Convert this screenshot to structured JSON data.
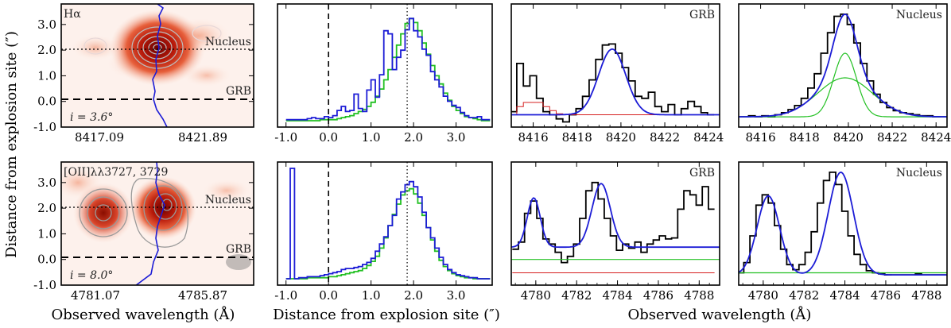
{
  "chart_data": {
    "type": "line",
    "shared": {
      "ylabel": "Distance from explosion site (″)",
      "xlabel_spatial": "Distance from explosion site (″)",
      "xlabel_wave": "Observed wavelength (Å)",
      "xlabel_image": "Observed wavelength (Å)",
      "ylim": [
        -1.0,
        3.8
      ],
      "yticks": [
        "-1.0",
        "0.0",
        "1.0",
        "2.0",
        "3.0"
      ],
      "ytick_values": [
        -1,
        0,
        1,
        2,
        3
      ],
      "spatial_xticks": [
        "-1.0",
        "0.0",
        "1.0",
        "2.0",
        "3.0"
      ],
      "spatial_xtick_values": [
        -1,
        0,
        1,
        2,
        3
      ],
      "nucleus_label": "Nucleus",
      "grb_label": "GRB",
      "nucleus_offset": 1.95,
      "grb_offset": 0.0,
      "peak_offset": 1.85
    },
    "rows": [
      {
        "line": "Hα",
        "image_title": "Hα",
        "inclination_label": "i = 3.6°",
        "image_xticks": [
          "8417.09",
          "8421.89"
        ],
        "wave_xlim": [
          8415,
          8424.5
        ],
        "wave_xticks": [
          8416,
          8418,
          8420,
          8422,
          8424
        ],
        "wave_ylim": [
          -0.1,
          1.1
        ],
        "profile_offsets": [
          -0.95,
          -0.85,
          -0.75,
          -0.65,
          -0.55,
          -0.45,
          -0.35,
          -0.25,
          -0.15,
          -0.05,
          0.05,
          0.15,
          0.25,
          0.35,
          0.45,
          0.55,
          0.65,
          0.75,
          0.85,
          0.95,
          1.05,
          1.15,
          1.25,
          1.35,
          1.45,
          1.55,
          1.65,
          1.75,
          1.85,
          1.95,
          2.05,
          2.15,
          2.25,
          2.35,
          2.45,
          2.55,
          2.65,
          2.75,
          2.85,
          2.95,
          3.05,
          3.15,
          3.25,
          3.35,
          3.45,
          3.55,
          3.65,
          3.75
        ],
        "profile_blue": [
          0.01,
          0.01,
          0.01,
          0.01,
          0.01,
          0.02,
          0.03,
          0.02,
          0.02,
          0.04,
          0.03,
          0.05,
          0.1,
          0.14,
          0.09,
          0.1,
          0.26,
          0.12,
          0.09,
          0.3,
          0.4,
          0.23,
          0.45,
          0.88,
          0.85,
          0.5,
          0.62,
          0.69,
          0.89,
          1.0,
          0.88,
          0.82,
          0.7,
          0.64,
          0.48,
          0.4,
          0.33,
          0.24,
          0.19,
          0.15,
          0.13,
          0.08,
          0.05,
          0.03,
          0.03,
          0.04,
          0.01,
          0.01
        ],
        "profile_green": [
          0.0,
          0.0,
          0.0,
          0.0,
          0.0,
          0.0,
          0.0,
          0.0,
          0.01,
          0.01,
          0.01,
          0.01,
          0.02,
          0.03,
          0.04,
          0.05,
          0.07,
          0.09,
          0.11,
          0.14,
          0.18,
          0.24,
          0.31,
          0.4,
          0.5,
          0.62,
          0.74,
          0.85,
          0.95,
          1.0,
          0.96,
          0.88,
          0.76,
          0.65,
          0.54,
          0.44,
          0.36,
          0.27,
          0.2,
          0.14,
          0.1,
          0.07,
          0.04,
          0.03,
          0.02,
          0.01,
          0.0,
          0.0
        ],
        "grb_panel": {
          "label": "GRB",
          "wave": [
            8415.1,
            8415.4,
            8415.7,
            8416.0,
            8416.3,
            8416.6,
            8416.9,
            8417.2,
            8417.5,
            8417.8,
            8418.1,
            8418.4,
            8418.7,
            8419.0,
            8419.3,
            8419.6,
            8419.9,
            8420.2,
            8420.5,
            8420.8,
            8421.1,
            8421.4,
            8421.7,
            8422.0,
            8422.3,
            8422.6,
            8422.9,
            8423.2,
            8423.5,
            8423.8,
            8424.1
          ],
          "data": [
            0.05,
            0.52,
            0.3,
            0.4,
            0.18,
            0.05,
            0.02,
            -0.02,
            -0.05,
            0.02,
            0.08,
            0.2,
            0.36,
            0.56,
            0.7,
            0.71,
            0.62,
            0.48,
            0.35,
            0.2,
            0.18,
            0.24,
            0.1,
            0.05,
            0.12,
            0.02,
            0.08,
            0.15,
            0.1,
            0.04,
            0.02
          ],
          "fit_amplitude": 0.64,
          "fit_center": 8419.6,
          "fit_sigma": 0.62,
          "fit_baseline": 0.02,
          "error": [
            0.02,
            0.1,
            0.14,
            0.14,
            0.14,
            0.1,
            0.06,
            0.03,
            0.02,
            0.02,
            0.02,
            0.02,
            0.02,
            0.02,
            0.02,
            0.02,
            0.02,
            0.02,
            0.02,
            0.02,
            0.02,
            0.02,
            0.02,
            0.02,
            0.02,
            0.02,
            0.02,
            0.02,
            0.02,
            0.02,
            0.02
          ]
        },
        "nucleus_panel": {
          "label": "Nucleus",
          "wave": [
            8415.0,
            8415.3,
            8415.6,
            8415.9,
            8416.2,
            8416.5,
            8416.8,
            8417.1,
            8417.4,
            8417.7,
            8418.0,
            8418.3,
            8418.6,
            8418.9,
            8419.2,
            8419.5,
            8419.8,
            8420.1,
            8420.4,
            8420.7,
            8421.0,
            8421.3,
            8421.6,
            8421.9,
            8422.2,
            8422.5,
            8422.8,
            8423.1,
            8423.4,
            8423.7,
            8424.0,
            8424.3
          ],
          "data": [
            0.0,
            0.0,
            0.01,
            0.0,
            0.01,
            0.0,
            0.02,
            0.04,
            0.07,
            0.11,
            0.18,
            0.28,
            0.42,
            0.62,
            0.82,
            0.98,
            1.0,
            0.9,
            0.72,
            0.52,
            0.35,
            0.22,
            0.14,
            0.09,
            0.06,
            0.04,
            0.03,
            0.02,
            0.01,
            0.01,
            0.0,
            0.0
          ],
          "narrow": {
            "amplitude": 0.62,
            "center": 8419.85,
            "sigma": 0.52
          },
          "broad": {
            "amplitude": 0.38,
            "center": 8419.85,
            "sigma": 1.25
          }
        }
      },
      {
        "line": "[OII] λλ3727, 3729",
        "image_title": "[OII]λλ3727, 3729",
        "inclination_label": "i = 8.0°",
        "image_xticks": [
          "4781.07",
          "4785.87"
        ],
        "wave_xlim": [
          4778.8,
          4789.0
        ],
        "wave_xticks": [
          4780,
          4782,
          4784,
          4786,
          4788
        ],
        "wave_ylim": [
          -0.1,
          1.1
        ],
        "profile_offsets": [
          -0.95,
          -0.85,
          -0.75,
          -0.65,
          -0.55,
          -0.45,
          -0.35,
          -0.25,
          -0.15,
          -0.05,
          0.05,
          0.15,
          0.25,
          0.35,
          0.45,
          0.55,
          0.65,
          0.75,
          0.85,
          0.95,
          1.05,
          1.15,
          1.25,
          1.35,
          1.45,
          1.55,
          1.65,
          1.75,
          1.85,
          1.95,
          2.05,
          2.15,
          2.25,
          2.35,
          2.45,
          2.55,
          2.65,
          2.75,
          2.85,
          2.95,
          3.05,
          3.15,
          3.25,
          3.35,
          3.45,
          3.55,
          3.65,
          3.75
        ],
        "profile_blue": [
          0.0,
          4.0,
          0.0,
          0.01,
          0.01,
          0.02,
          0.02,
          0.02,
          0.03,
          0.04,
          0.05,
          0.06,
          0.07,
          0.09,
          0.1,
          0.1,
          0.11,
          0.12,
          0.14,
          0.16,
          0.2,
          0.27,
          0.34,
          0.41,
          0.52,
          0.62,
          0.78,
          0.85,
          0.92,
          0.95,
          0.9,
          0.8,
          0.65,
          0.5,
          0.4,
          0.3,
          0.21,
          0.14,
          0.09,
          0.06,
          0.04,
          0.03,
          0.02,
          0.01,
          0.01,
          0.0,
          0.0,
          0.0
        ],
        "profile_green": [
          0.0,
          0.0,
          0.0,
          0.0,
          0.0,
          0.01,
          0.01,
          0.01,
          0.01,
          0.01,
          0.02,
          0.02,
          0.03,
          0.04,
          0.05,
          0.06,
          0.07,
          0.08,
          0.1,
          0.13,
          0.17,
          0.22,
          0.3,
          0.4,
          0.52,
          0.63,
          0.73,
          0.82,
          0.86,
          0.88,
          0.83,
          0.74,
          0.62,
          0.5,
          0.38,
          0.27,
          0.18,
          0.12,
          0.08,
          0.05,
          0.03,
          0.02,
          0.01,
          0.01,
          0.0,
          0.0,
          0.0,
          0.0
        ],
        "grb_panel": {
          "label": "GRB",
          "wave": [
            4779.0,
            4779.3,
            4779.6,
            4779.9,
            4780.2,
            4780.5,
            4780.8,
            4781.1,
            4781.4,
            4781.7,
            4782.0,
            4782.3,
            4782.6,
            4782.9,
            4783.2,
            4783.5,
            4783.8,
            4784.1,
            4784.4,
            4784.7,
            4785.0,
            4785.3,
            4785.6,
            4785.9,
            4786.2,
            4786.5,
            4786.8,
            4787.1,
            4787.4,
            4787.7,
            4788.0,
            4788.3,
            4788.6
          ],
          "data": [
            0.25,
            0.32,
            0.6,
            0.72,
            0.55,
            0.35,
            0.3,
            0.22,
            0.12,
            0.18,
            0.3,
            0.55,
            0.82,
            0.9,
            0.74,
            0.55,
            0.38,
            0.24,
            0.3,
            0.26,
            0.32,
            0.22,
            0.3,
            0.34,
            0.38,
            0.35,
            0.36,
            0.64,
            0.82,
            0.78,
            0.68,
            0.86,
            0.64
          ],
          "fit": [
            {
              "amplitude": 0.48,
              "center": 4779.9,
              "sigma": 0.32
            },
            {
              "amplitude": 0.62,
              "center": 4783.2,
              "sigma": 0.45
            }
          ],
          "fit_baseline": 0.27,
          "continuum": 0.15,
          "error": [
            0.02,
            0.02,
            0.02,
            0.02,
            0.02,
            0.02,
            0.02,
            0.02,
            0.02,
            0.02,
            0.02,
            0.02,
            0.02,
            0.02,
            0.02,
            0.02,
            0.02,
            0.02,
            0.02,
            0.02,
            0.02,
            0.02,
            0.02,
            0.02,
            0.02,
            0.02,
            0.02,
            0.02,
            0.02,
            0.02,
            0.02,
            0.02,
            0.02
          ]
        },
        "nucleus_panel": {
          "label": "Nucleus",
          "wave": [
            4778.9,
            4779.2,
            4779.5,
            4779.8,
            4780.1,
            4780.4,
            4780.7,
            4781.0,
            4781.3,
            4781.6,
            4781.9,
            4782.2,
            4782.5,
            4782.8,
            4783.1,
            4783.4,
            4783.7,
            4784.0,
            4784.3,
            4784.6,
            4784.9,
            4785.2,
            4785.5,
            4785.8,
            4786.1,
            4786.4,
            4786.7,
            4787.0,
            4787.3,
            4787.6,
            4787.9,
            4788.2,
            4788.5,
            4788.8
          ],
          "data": [
            0.02,
            0.12,
            0.38,
            0.68,
            0.78,
            0.7,
            0.48,
            0.25,
            0.1,
            0.05,
            0.1,
            0.22,
            0.42,
            0.7,
            0.92,
            1.0,
            0.88,
            0.62,
            0.38,
            0.2,
            0.1,
            0.04,
            0.02,
            0.01,
            0.0,
            0.0,
            0.0,
            0.0,
            0.0,
            0.01,
            0.0,
            0.0,
            0.0,
            0.0
          ],
          "fit": [
            {
              "amplitude": 0.77,
              "center": 4780.25,
              "sigma": 0.55
            },
            {
              "amplitude": 1.0,
              "center": 4783.8,
              "sigma": 0.62
            }
          ],
          "continuum": 0.02
        }
      }
    ]
  }
}
